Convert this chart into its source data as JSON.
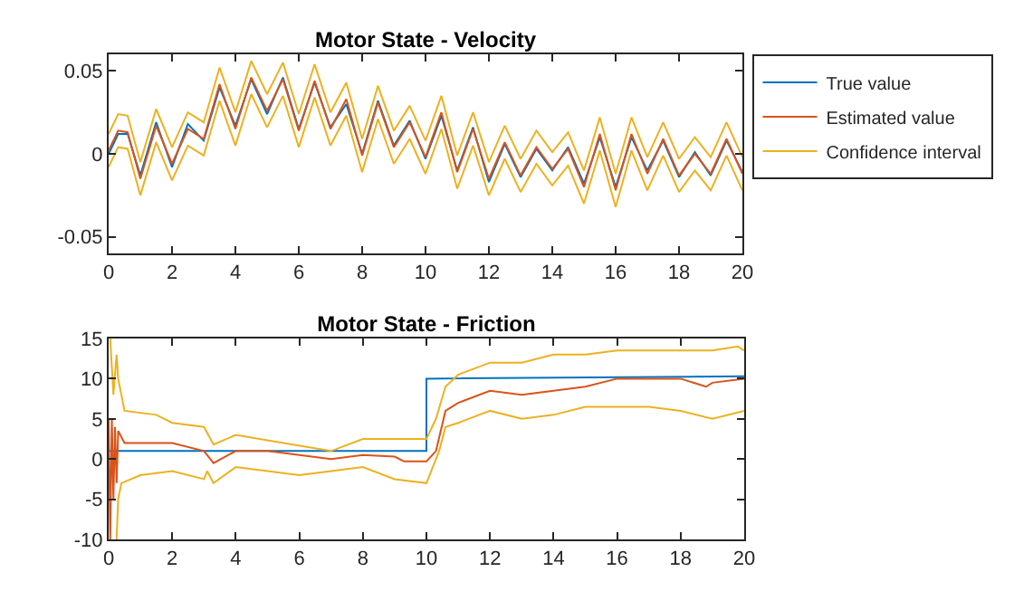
{
  "chart_data": [
    {
      "type": "line",
      "title": "Motor State - Velocity",
      "xlim": [
        0,
        20
      ],
      "xticks": [
        0,
        2,
        4,
        6,
        8,
        10,
        12,
        14,
        16,
        18,
        20
      ],
      "ylim": [
        -0.06,
        0.06
      ],
      "yticks": [
        -0.05,
        0,
        0.05
      ],
      "grid": false,
      "legend": "top right",
      "series": [
        {
          "name": "True value",
          "color": "#0072bd",
          "x": [
            0,
            0.3,
            0.6,
            1,
            1.5,
            2,
            2.5,
            3,
            3.5,
            4,
            4.5,
            5,
            5.5,
            6,
            6.5,
            7,
            7.5,
            8,
            8.5,
            9,
            9.5,
            10,
            10.5,
            11,
            11.5,
            12,
            12.5,
            13,
            13.5,
            14,
            14.5,
            15,
            15.5,
            16,
            16.5,
            17,
            17.5,
            18,
            18.5,
            19,
            19.5,
            20
          ],
          "values": [
            0,
            0.012,
            0.012,
            -0.013,
            0.019,
            -0.008,
            0.018,
            0.008,
            0.04,
            0.017,
            0.045,
            0.024,
            0.046,
            0.015,
            0.043,
            0.016,
            0.03,
            0,
            0.032,
            0.005,
            0.02,
            -0.003,
            0.023,
            -0.01,
            0.016,
            -0.017,
            0.006,
            -0.014,
            0.003,
            -0.01,
            0.004,
            -0.018,
            0.01,
            -0.02,
            0.01,
            -0.01,
            0.008,
            -0.014,
            0.001,
            -0.013,
            0.008,
            -0.011
          ]
        },
        {
          "name": "Estimated value",
          "color": "#d95319",
          "x": [
            0,
            0.3,
            0.6,
            1,
            1.5,
            2,
            2.5,
            3,
            3.5,
            4,
            4.5,
            5,
            5.5,
            6,
            6.5,
            7,
            7.5,
            8,
            8.5,
            9,
            9.5,
            10,
            10.5,
            11,
            11.5,
            12,
            12.5,
            13,
            13.5,
            14,
            14.5,
            15,
            15.5,
            16,
            16.5,
            17,
            17.5,
            18,
            18.5,
            19,
            19.5,
            20
          ],
          "values": [
            0.002,
            0.014,
            0.013,
            -0.015,
            0.017,
            -0.006,
            0.015,
            0.009,
            0.042,
            0.015,
            0.046,
            0.026,
            0.045,
            0.014,
            0.044,
            0.015,
            0.033,
            -0.001,
            0.031,
            0.004,
            0.019,
            -0.002,
            0.025,
            -0.011,
            0.015,
            -0.015,
            0.007,
            -0.013,
            0.004,
            -0.009,
            0.003,
            -0.02,
            0.012,
            -0.022,
            0.012,
            -0.012,
            0.009,
            -0.013,
            0,
            -0.012,
            0.009,
            -0.012
          ]
        },
        {
          "name": "Confidence interval",
          "color": "#edb120",
          "x": [
            0,
            0.3,
            0.6,
            1,
            1.5,
            2,
            2.5,
            3,
            3.5,
            4,
            4.5,
            5,
            5.5,
            6,
            6.5,
            7,
            7.5,
            8,
            8.5,
            9,
            9.5,
            10,
            10.5,
            11,
            11.5,
            12,
            12.5,
            13,
            13.5,
            14,
            14.5,
            15,
            15.5,
            16,
            16.5,
            17,
            17.5,
            18,
            18.5,
            19,
            19.5,
            20
          ],
          "values": [
            0.012,
            0.024,
            0.023,
            -0.005,
            0.027,
            0.004,
            0.025,
            0.019,
            0.052,
            0.025,
            0.056,
            0.036,
            0.055,
            0.024,
            0.054,
            0.025,
            0.043,
            0.009,
            0.041,
            0.014,
            0.029,
            0.008,
            0.035,
            -0.001,
            0.025,
            -0.005,
            0.017,
            -0.003,
            0.014,
            0.001,
            0.013,
            -0.01,
            0.022,
            -0.012,
            0.022,
            -0.002,
            0.019,
            -0.003,
            0.01,
            -0.002,
            0.019,
            -0.002
          ]
        },
        {
          "color": "#edb120",
          "x": [
            0,
            0.3,
            0.6,
            1,
            1.5,
            2,
            2.5,
            3,
            3.5,
            4,
            4.5,
            5,
            5.5,
            6,
            6.5,
            7,
            7.5,
            8,
            8.5,
            9,
            9.5,
            10,
            10.5,
            11,
            11.5,
            12,
            12.5,
            13,
            13.5,
            14,
            14.5,
            15,
            15.5,
            16,
            16.5,
            17,
            17.5,
            18,
            18.5,
            19,
            19.5,
            20
          ],
          "values": [
            -0.008,
            0.004,
            0.003,
            -0.025,
            0.007,
            -0.016,
            0.005,
            -0.001,
            0.032,
            0.005,
            0.036,
            0.016,
            0.035,
            0.004,
            0.034,
            0.005,
            0.023,
            -0.011,
            0.021,
            -0.006,
            0.009,
            -0.012,
            0.015,
            -0.021,
            0.005,
            -0.025,
            -0.003,
            -0.023,
            -0.006,
            -0.019,
            -0.007,
            -0.03,
            0.002,
            -0.032,
            0.002,
            -0.022,
            -0.001,
            -0.023,
            -0.01,
            -0.022,
            -0.001,
            -0.022
          ]
        }
      ]
    },
    {
      "type": "line",
      "title": "Motor State - Friction",
      "xlim": [
        0,
        20
      ],
      "xticks": [
        0,
        2,
        4,
        6,
        8,
        10,
        12,
        14,
        16,
        18,
        20
      ],
      "ylim": [
        -10,
        15
      ],
      "yticks": [
        -10,
        -5,
        0,
        5,
        10,
        15
      ],
      "grid": false,
      "series": [
        {
          "color": "#0072bd",
          "x": [
            0,
            10,
            10,
            20
          ],
          "values": [
            1,
            1,
            10,
            10.3
          ]
        },
        {
          "color": "#d95319",
          "x": [
            0,
            0.05,
            0.1,
            0.15,
            0.2,
            0.25,
            0.3,
            0.5,
            1,
            2,
            3,
            3.3,
            4,
            5,
            6,
            7,
            8,
            9,
            9.3,
            10,
            10.3,
            10.6,
            11,
            12,
            13,
            14,
            15,
            16,
            17,
            18,
            18.8,
            19,
            20
          ],
          "values": [
            5,
            -10,
            5,
            -5,
            4,
            -3,
            3.5,
            2,
            2,
            2,
            1,
            -0.5,
            1,
            1,
            0.5,
            0,
            0.5,
            0.3,
            -0.3,
            -0.3,
            1,
            6,
            7,
            8.5,
            8,
            8.5,
            9,
            10,
            10,
            10,
            9,
            9.5,
            10
          ]
        },
        {
          "color": "#edb120",
          "x": [
            0.05,
            0.15,
            0.25,
            0.3,
            0.5,
            1.5,
            2,
            3,
            3.3,
            4,
            5.5,
            7,
            8,
            9,
            10,
            10.3,
            10.6,
            11,
            12,
            13,
            14,
            15,
            16,
            17,
            18,
            19,
            19.8,
            20
          ],
          "values": [
            15,
            8,
            13,
            10,
            6,
            5.5,
            4.5,
            4,
            1.8,
            3,
            2,
            1,
            2.5,
            2.5,
            2.5,
            5,
            9,
            10.5,
            12,
            12,
            13,
            13,
            13.5,
            13.5,
            13.5,
            13.5,
            14,
            13.5
          ]
        },
        {
          "color": "#edb120",
          "x": [
            0.25,
            0.3,
            0.4,
            1,
            2,
            3,
            3.1,
            3.3,
            4,
            6,
            7,
            8,
            9,
            10,
            10.4,
            10.6,
            11,
            12,
            13,
            14,
            15,
            16,
            17,
            18,
            19,
            20
          ],
          "values": [
            -10,
            -5,
            -3,
            -2,
            -1.5,
            -2.5,
            -1.5,
            -3,
            -1,
            -2,
            -1.5,
            -1,
            -2.5,
            -3,
            1,
            4,
            4.5,
            6,
            5,
            5.5,
            6.5,
            6.5,
            6.5,
            6,
            5,
            6
          ]
        }
      ]
    }
  ]
}
